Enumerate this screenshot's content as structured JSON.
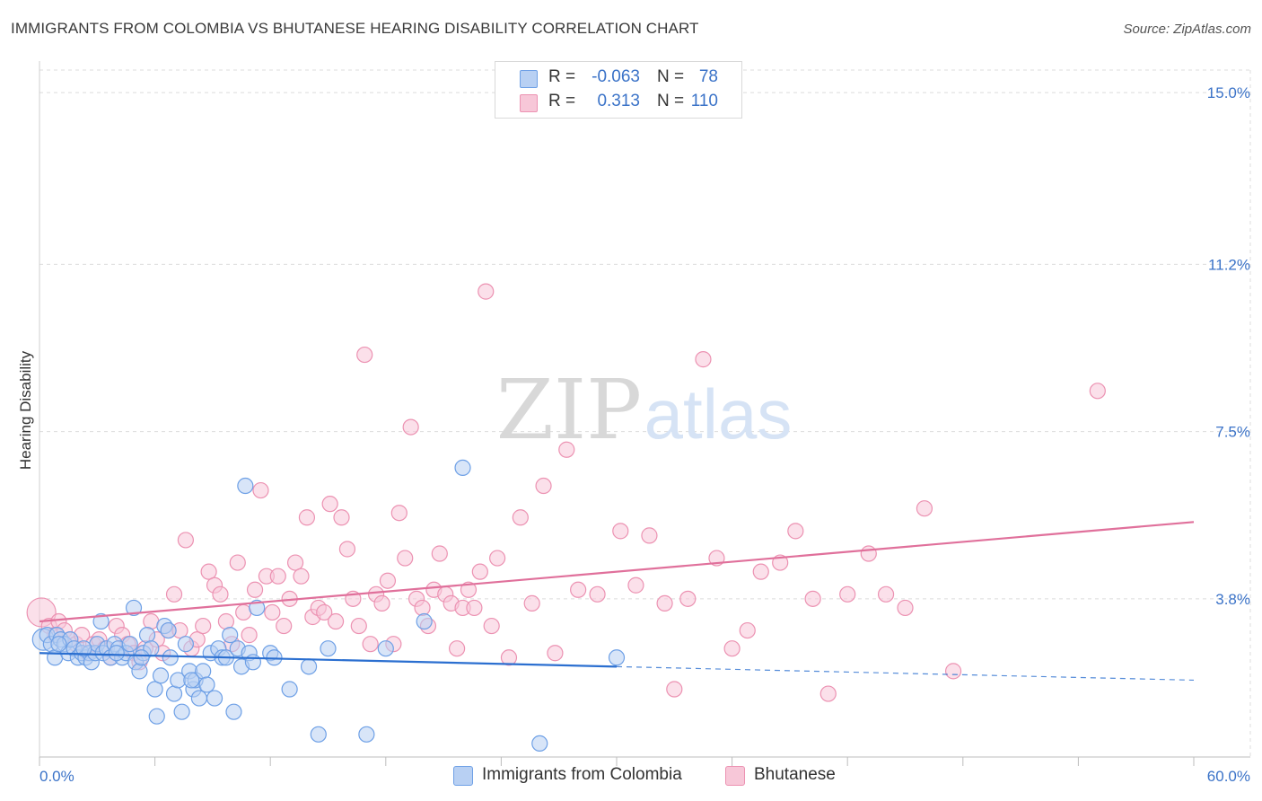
{
  "title": "IMMIGRANTS FROM COLOMBIA VS BHUTANESE HEARING DISABILITY CORRELATION CHART",
  "source": "Source: ZipAtlas.com",
  "watermark": {
    "zip": "ZIP",
    "atlas": "atlas"
  },
  "colors": {
    "blue": "#6ea0e6",
    "blue_fill": "#b8d0f3",
    "blue_line": "#2b6fd0",
    "pink": "#ec92b2",
    "pink_fill": "#f7c7d8",
    "pink_line": "#e0709b",
    "grid": "#dcdcdc",
    "tick_text": "#3b73c8"
  },
  "legend": {
    "rows": [
      {
        "r_label": "R =",
        "r_value": "-0.063",
        "n_label": "N =",
        "n_value": "78"
      },
      {
        "r_label": "R =",
        "r_value": "0.313",
        "n_label": "N =",
        "n_value": "110"
      }
    ]
  },
  "bottom_legend": [
    "Immigrants from Colombia",
    "Bhutanese"
  ],
  "chart_data": {
    "type": "scatter",
    "title": "IMMIGRANTS FROM COLOMBIA VS BHUTANESE HEARING DISABILITY CORRELATION CHART",
    "xlabel": "",
    "ylabel": "Hearing Disability",
    "xlim": [
      0,
      60
    ],
    "ylim": [
      0,
      15.5
    ],
    "x_tick_labels": [
      "0.0%",
      "60.0%"
    ],
    "y_ticks": [
      3.8,
      7.5,
      11.2,
      15.0
    ],
    "y_tick_labels": [
      "3.8%",
      "7.5%",
      "11.2%",
      "15.0%"
    ],
    "grid": true,
    "series": [
      {
        "name": "Immigrants from Colombia",
        "R": -0.063,
        "N": 78,
        "trend": {
          "x0": 0,
          "y0": 2.6,
          "x1": 30,
          "y1": 2.3,
          "dashed_to_x": 60,
          "dashed_to_y": 2.0
        },
        "points": [
          [
            0.2,
            2.9
          ],
          [
            0.4,
            3.0
          ],
          [
            0.6,
            2.8
          ],
          [
            0.8,
            2.5
          ],
          [
            0.9,
            3.0
          ],
          [
            1.1,
            2.9
          ],
          [
            1.3,
            2.8
          ],
          [
            1.5,
            2.6
          ],
          [
            1.6,
            2.9
          ],
          [
            1.8,
            2.7
          ],
          [
            2.0,
            2.5
          ],
          [
            2.2,
            2.6
          ],
          [
            2.4,
            2.5
          ],
          [
            2.6,
            2.6
          ],
          [
            2.7,
            2.4
          ],
          [
            2.9,
            2.6
          ],
          [
            3.0,
            2.8
          ],
          [
            3.2,
            3.3
          ],
          [
            3.3,
            2.6
          ],
          [
            3.5,
            2.7
          ],
          [
            3.7,
            2.5
          ],
          [
            3.9,
            2.8
          ],
          [
            4.1,
            2.7
          ],
          [
            4.3,
            2.5
          ],
          [
            4.5,
            2.6
          ],
          [
            4.7,
            2.8
          ],
          [
            4.9,
            3.6
          ],
          [
            5.0,
            2.4
          ],
          [
            5.2,
            2.2
          ],
          [
            5.4,
            2.6
          ],
          [
            5.6,
            3.0
          ],
          [
            5.8,
            2.7
          ],
          [
            6.0,
            1.8
          ],
          [
            6.1,
            1.2
          ],
          [
            6.3,
            2.1
          ],
          [
            6.5,
            3.2
          ],
          [
            6.7,
            3.1
          ],
          [
            6.8,
            2.5
          ],
          [
            7.0,
            1.7
          ],
          [
            7.2,
            2.0
          ],
          [
            7.4,
            1.3
          ],
          [
            7.6,
            2.8
          ],
          [
            7.8,
            2.2
          ],
          [
            8.0,
            1.8
          ],
          [
            8.1,
            2.0
          ],
          [
            8.3,
            1.6
          ],
          [
            8.5,
            2.2
          ],
          [
            8.7,
            1.9
          ],
          [
            8.9,
            2.6
          ],
          [
            9.1,
            1.6
          ],
          [
            9.3,
            2.7
          ],
          [
            9.5,
            2.5
          ],
          [
            9.7,
            2.5
          ],
          [
            9.9,
            3.0
          ],
          [
            10.1,
            1.3
          ],
          [
            10.3,
            2.7
          ],
          [
            10.5,
            2.3
          ],
          [
            10.7,
            6.3
          ],
          [
            10.9,
            2.6
          ],
          [
            11.1,
            2.4
          ],
          [
            11.3,
            3.6
          ],
          [
            12.0,
            2.6
          ],
          [
            12.2,
            2.5
          ],
          [
            13.0,
            1.8
          ],
          [
            14.0,
            2.3
          ],
          [
            14.5,
            0.8
          ],
          [
            15.0,
            2.7
          ],
          [
            17.0,
            0.8
          ],
          [
            18.0,
            2.7
          ],
          [
            20.0,
            3.3
          ],
          [
            22.0,
            6.7
          ],
          [
            26.0,
            0.6
          ],
          [
            30.0,
            2.5
          ],
          [
            1.0,
            2.8
          ],
          [
            2.3,
            2.7
          ],
          [
            4.0,
            2.6
          ],
          [
            5.3,
            2.5
          ],
          [
            7.9,
            2.0
          ]
        ]
      },
      {
        "name": "Bhutanese",
        "R": 0.313,
        "N": 110,
        "trend": {
          "x0": 0,
          "y0": 3.3,
          "x1": 60,
          "y1": 5.5
        },
        "points": [
          [
            0.1,
            3.5
          ],
          [
            0.5,
            3.2
          ],
          [
            0.8,
            3.0
          ],
          [
            1.0,
            3.3
          ],
          [
            1.3,
            3.1
          ],
          [
            1.6,
            2.9
          ],
          [
            1.9,
            2.8
          ],
          [
            2.2,
            3.0
          ],
          [
            2.5,
            2.6
          ],
          [
            2.8,
            2.8
          ],
          [
            3.1,
            2.9
          ],
          [
            3.4,
            2.7
          ],
          [
            3.7,
            2.5
          ],
          [
            4.0,
            3.2
          ],
          [
            4.3,
            3.0
          ],
          [
            4.6,
            2.8
          ],
          [
            4.9,
            2.6
          ],
          [
            5.2,
            2.4
          ],
          [
            5.5,
            2.7
          ],
          [
            5.8,
            3.3
          ],
          [
            6.1,
            2.9
          ],
          [
            6.4,
            2.6
          ],
          [
            6.7,
            3.1
          ],
          [
            7.0,
            3.9
          ],
          [
            7.3,
            3.1
          ],
          [
            7.6,
            5.1
          ],
          [
            7.9,
            2.7
          ],
          [
            8.2,
            2.9
          ],
          [
            8.5,
            3.2
          ],
          [
            8.8,
            4.4
          ],
          [
            9.1,
            4.1
          ],
          [
            9.4,
            3.9
          ],
          [
            9.7,
            3.3
          ],
          [
            10.0,
            2.8
          ],
          [
            10.3,
            4.6
          ],
          [
            10.6,
            3.5
          ],
          [
            10.9,
            3.0
          ],
          [
            11.2,
            4.0
          ],
          [
            11.5,
            6.2
          ],
          [
            11.8,
            4.3
          ],
          [
            12.1,
            3.5
          ],
          [
            12.4,
            4.3
          ],
          [
            12.7,
            3.2
          ],
          [
            13.0,
            3.8
          ],
          [
            13.3,
            4.6
          ],
          [
            13.6,
            4.3
          ],
          [
            13.9,
            5.6
          ],
          [
            14.2,
            3.4
          ],
          [
            14.5,
            3.6
          ],
          [
            14.8,
            3.5
          ],
          [
            15.1,
            5.9
          ],
          [
            15.4,
            3.3
          ],
          [
            15.7,
            5.6
          ],
          [
            16.0,
            4.9
          ],
          [
            16.3,
            3.8
          ],
          [
            16.6,
            3.2
          ],
          [
            16.9,
            9.2
          ],
          [
            17.2,
            2.8
          ],
          [
            17.5,
            3.9
          ],
          [
            17.8,
            3.7
          ],
          [
            18.1,
            4.2
          ],
          [
            18.4,
            2.8
          ],
          [
            18.7,
            5.7
          ],
          [
            19.0,
            4.7
          ],
          [
            19.3,
            7.6
          ],
          [
            19.6,
            3.8
          ],
          [
            19.9,
            3.6
          ],
          [
            20.2,
            3.2
          ],
          [
            20.5,
            4.0
          ],
          [
            20.8,
            4.8
          ],
          [
            21.1,
            3.9
          ],
          [
            21.4,
            3.7
          ],
          [
            21.7,
            2.7
          ],
          [
            22.0,
            3.6
          ],
          [
            22.3,
            4.0
          ],
          [
            22.6,
            3.6
          ],
          [
            22.9,
            4.4
          ],
          [
            23.2,
            10.6
          ],
          [
            23.5,
            3.2
          ],
          [
            23.8,
            4.7
          ],
          [
            24.4,
            2.5
          ],
          [
            25.0,
            5.6
          ],
          [
            25.6,
            3.7
          ],
          [
            26.2,
            6.3
          ],
          [
            26.8,
            2.6
          ],
          [
            27.4,
            7.1
          ],
          [
            28.0,
            4.0
          ],
          [
            29.0,
            3.9
          ],
          [
            30.2,
            5.3
          ],
          [
            31.0,
            4.1
          ],
          [
            31.7,
            5.2
          ],
          [
            32.5,
            3.7
          ],
          [
            33.0,
            1.8
          ],
          [
            33.7,
            3.8
          ],
          [
            34.5,
            9.1
          ],
          [
            35.2,
            4.7
          ],
          [
            36.0,
            2.7
          ],
          [
            36.8,
            3.1
          ],
          [
            37.5,
            4.4
          ],
          [
            38.5,
            4.6
          ],
          [
            39.3,
            5.3
          ],
          [
            40.2,
            3.8
          ],
          [
            41.0,
            1.7
          ],
          [
            42.0,
            3.9
          ],
          [
            43.1,
            4.8
          ],
          [
            44.0,
            3.9
          ],
          [
            45.0,
            3.6
          ],
          [
            46.0,
            5.8
          ],
          [
            47.5,
            2.2
          ],
          [
            55.0,
            8.4
          ]
        ]
      }
    ]
  }
}
